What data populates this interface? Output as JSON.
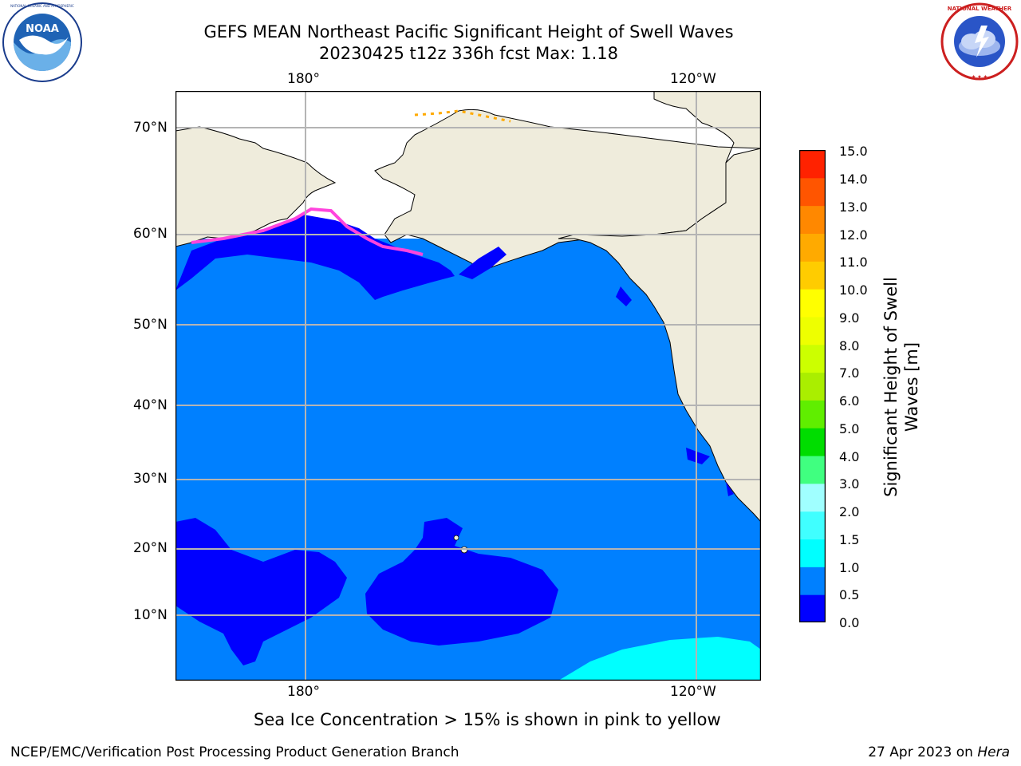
{
  "title": {
    "line1": "GEFS MEAN Northeast Pacific Significant Height of Swell Waves",
    "line2": "20230425 t12z 336h fcst   Max: 1.18"
  },
  "logos": {
    "left": {
      "icon": "noaa-logo",
      "ring_text": "NATIONAL OCEANIC AND ATMOSPHERIC ADMINISTRATION · U.S. DEPARTMENT OF COMMERCE",
      "center_text": "NOAA"
    },
    "right": {
      "icon": "nws-logo",
      "ring_text": "NATIONAL WEATHER SERVICE"
    }
  },
  "map": {
    "lon_ticks_top": [
      "180°",
      "120°W"
    ],
    "lon_ticks_bottom": [
      "180°",
      "120°W"
    ],
    "lat_ticks": [
      "70°N",
      "60°N",
      "50°N",
      "40°N",
      "30°N",
      "20°N",
      "10°N"
    ],
    "colors": {
      "land": "#efecdc",
      "ice_free_white": "#ffffff",
      "ocean_0_0_5": "#0000ff",
      "ocean_0_5_1_0": "#0080ff",
      "ocean_1_0_1_5": "#00ffff",
      "sea_ice": "#ff44dd",
      "grid": "#b4b4b4"
    }
  },
  "colorbar": {
    "title_line1": "Significant Height of Swell",
    "title_line2": "Waves [m]",
    "labels": [
      "15.0",
      "14.0",
      "13.0",
      "12.0",
      "11.0",
      "10.0",
      "9.0",
      "8.0",
      "7.0",
      "6.0",
      "5.0",
      "4.0",
      "3.0",
      "2.0",
      "1.5",
      "1.0",
      "0.5",
      "0.0"
    ],
    "colors": [
      "#0000ff",
      "#0080ff",
      "#00ffff",
      "#40ffff",
      "#a0ffff",
      "#40ff80",
      "#00dd00",
      "#60ee00",
      "#aaee00",
      "#ccff00",
      "#eeff00",
      "#ffff00",
      "#ffcc00",
      "#ffaa00",
      "#ff8800",
      "#ff5500",
      "#ff2200",
      "#ff0000"
    ]
  },
  "caption": "Sea Ice Concentration > 15% is shown in pink to yellow",
  "footer": {
    "left": "NCEP/EMC/Verification Post Processing Product Generation Branch",
    "right_prefix": "27 Apr 2023 on ",
    "right_host": "Hera"
  }
}
